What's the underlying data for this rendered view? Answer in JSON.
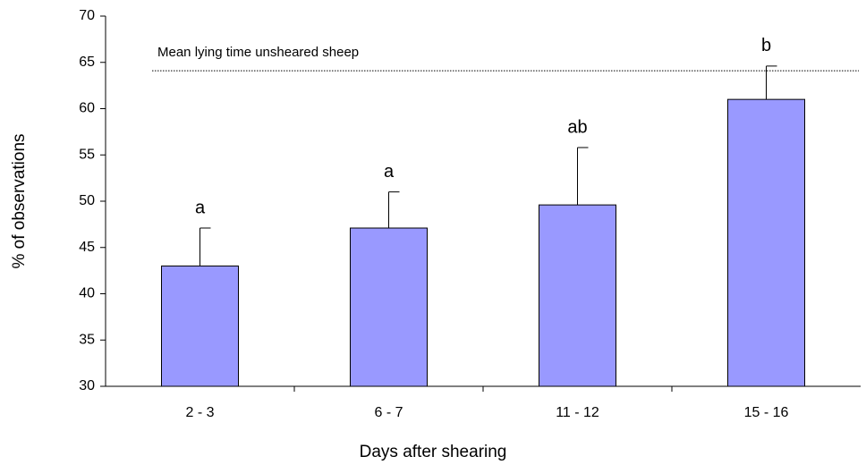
{
  "chart_data": {
    "type": "bar",
    "x_label": "Days after shearing",
    "y_label": "% of observations",
    "categories": [
      "2 - 3",
      "6 - 7",
      "11 - 12",
      "15 - 16"
    ],
    "values": [
      43,
      47.1,
      49.6,
      61
    ],
    "errors": [
      4.1,
      3.9,
      6.2,
      3.6
    ],
    "annotations": [
      "a",
      "a",
      "ab",
      "b"
    ],
    "color": "#9999ff",
    "reference_line": {
      "value": 64.1,
      "label": "Mean lying time unsheared sheep"
    },
    "ylim": [
      30,
      70
    ],
    "yticks": [
      30,
      35,
      40,
      45,
      50,
      55,
      60,
      65,
      70
    ]
  }
}
